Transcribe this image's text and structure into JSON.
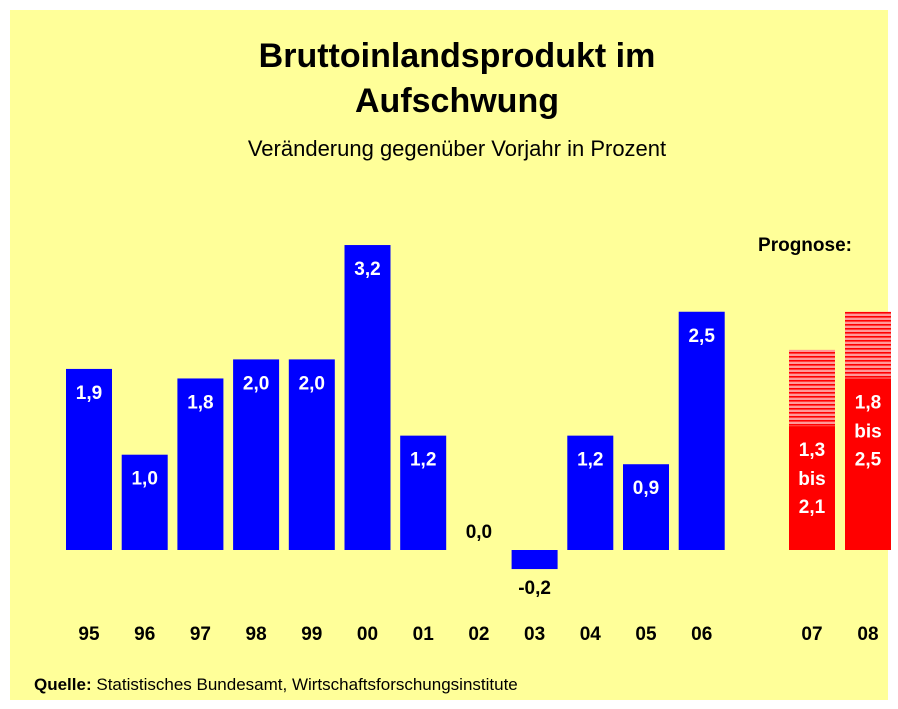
{
  "chart_data": {
    "type": "bar",
    "title": "Bruttoinlandsprodukt im Aufschwung",
    "subtitle": "Veränderung gegenüber Vorjahr in Prozent",
    "categories": [
      "95",
      "96",
      "97",
      "98",
      "99",
      "00",
      "01",
      "02",
      "03",
      "04",
      "05",
      "06"
    ],
    "values": [
      1.9,
      1.0,
      1.8,
      2.0,
      2.0,
      3.2,
      1.2,
      0.0,
      -0.2,
      1.2,
      0.9,
      2.5
    ],
    "value_labels": [
      "1,9",
      "1,0",
      "1,8",
      "2,0",
      "2,0",
      "3,2",
      "1,2",
      "0,0",
      "-0,2",
      "1,2",
      "0,9",
      "2,5"
    ],
    "color": "#0000ff",
    "forecast": {
      "annotation": "Prognose:",
      "categories": [
        "07",
        "08"
      ],
      "low": [
        1.3,
        1.8
      ],
      "high": [
        2.1,
        2.5
      ],
      "low_labels": [
        "1,3",
        "1,8"
      ],
      "high_labels": [
        "2,1",
        "2,5"
      ],
      "connector": "bis",
      "color": "#ff0000"
    },
    "source_label": "Quelle:",
    "source": "Statistisches Bundesamt, Wirtschaftsforschungsinstitute"
  }
}
